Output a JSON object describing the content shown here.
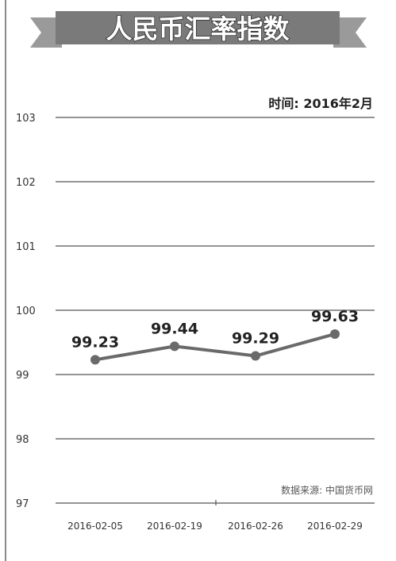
{
  "title": "人民币汇率指数",
  "subtitle": "时间: 2016年2月",
  "source": "数据来源: 中国货币网",
  "colors": {
    "line": "#6a6a6a",
    "banner": "#7a7a7a",
    "grid": "#555555"
  },
  "chart_data": {
    "type": "line",
    "categories": [
      "2016-02-05",
      "2016-02-19",
      "2016-02-26",
      "2016-02-29"
    ],
    "series": [
      {
        "values": [
          99.23,
          99.44,
          99.29,
          99.63
        ]
      }
    ],
    "data_labels": [
      "99.23",
      "99.44",
      "99.29",
      "99.63"
    ],
    "y_tick_labels": [
      "103",
      "102",
      "101",
      "100",
      "99",
      "98",
      "97"
    ],
    "ylim": [
      97,
      103
    ],
    "grid": true,
    "legend": "none",
    "title": "人民币汇率指数",
    "subtitle": "时间: 2016年2月"
  }
}
